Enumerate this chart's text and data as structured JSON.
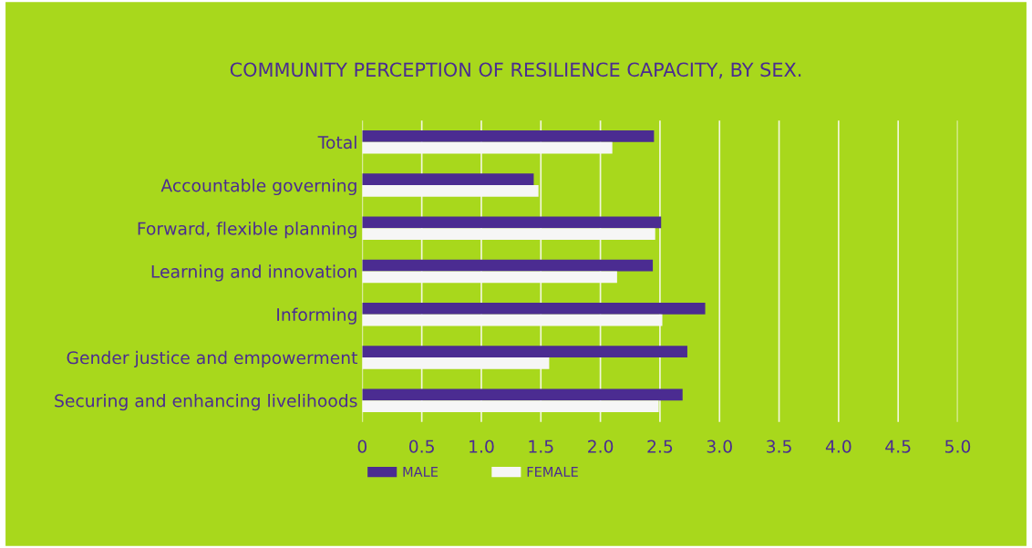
{
  "chart_data": {
    "type": "bar",
    "orientation": "horizontal",
    "title": "COMMUNITY PERCEPTION OF RESILIENCE CAPACITY, BY SEX.",
    "categories": [
      "Total",
      "Accountable governing",
      "Forward, flexible planning",
      "Learning and innovation",
      "Informing",
      "Gender justice and empowerment",
      "Securing and enhancing livelihoods"
    ],
    "series": [
      {
        "name": "MALE",
        "color": "#4b2c91",
        "values": [
          2.45,
          1.44,
          2.51,
          2.44,
          2.88,
          2.73,
          2.69
        ]
      },
      {
        "name": "FEMALE",
        "color": "#f6f6f6",
        "values": [
          2.1,
          1.48,
          2.46,
          2.14,
          2.52,
          1.57,
          2.49
        ]
      }
    ],
    "xlim": [
      0,
      5
    ],
    "xticks": [
      0,
      0.5,
      {
        "value": 1,
        "label": "1.0"
      },
      1.5,
      {
        "value": 2,
        "label": "2.0"
      },
      2.5,
      {
        "value": 3,
        "label": "3.0"
      },
      3.5,
      {
        "value": 4,
        "label": "4.0"
      },
      4.5,
      {
        "value": 5,
        "label": "5.0"
      }
    ],
    "grid": "x",
    "legend": "bottom"
  }
}
